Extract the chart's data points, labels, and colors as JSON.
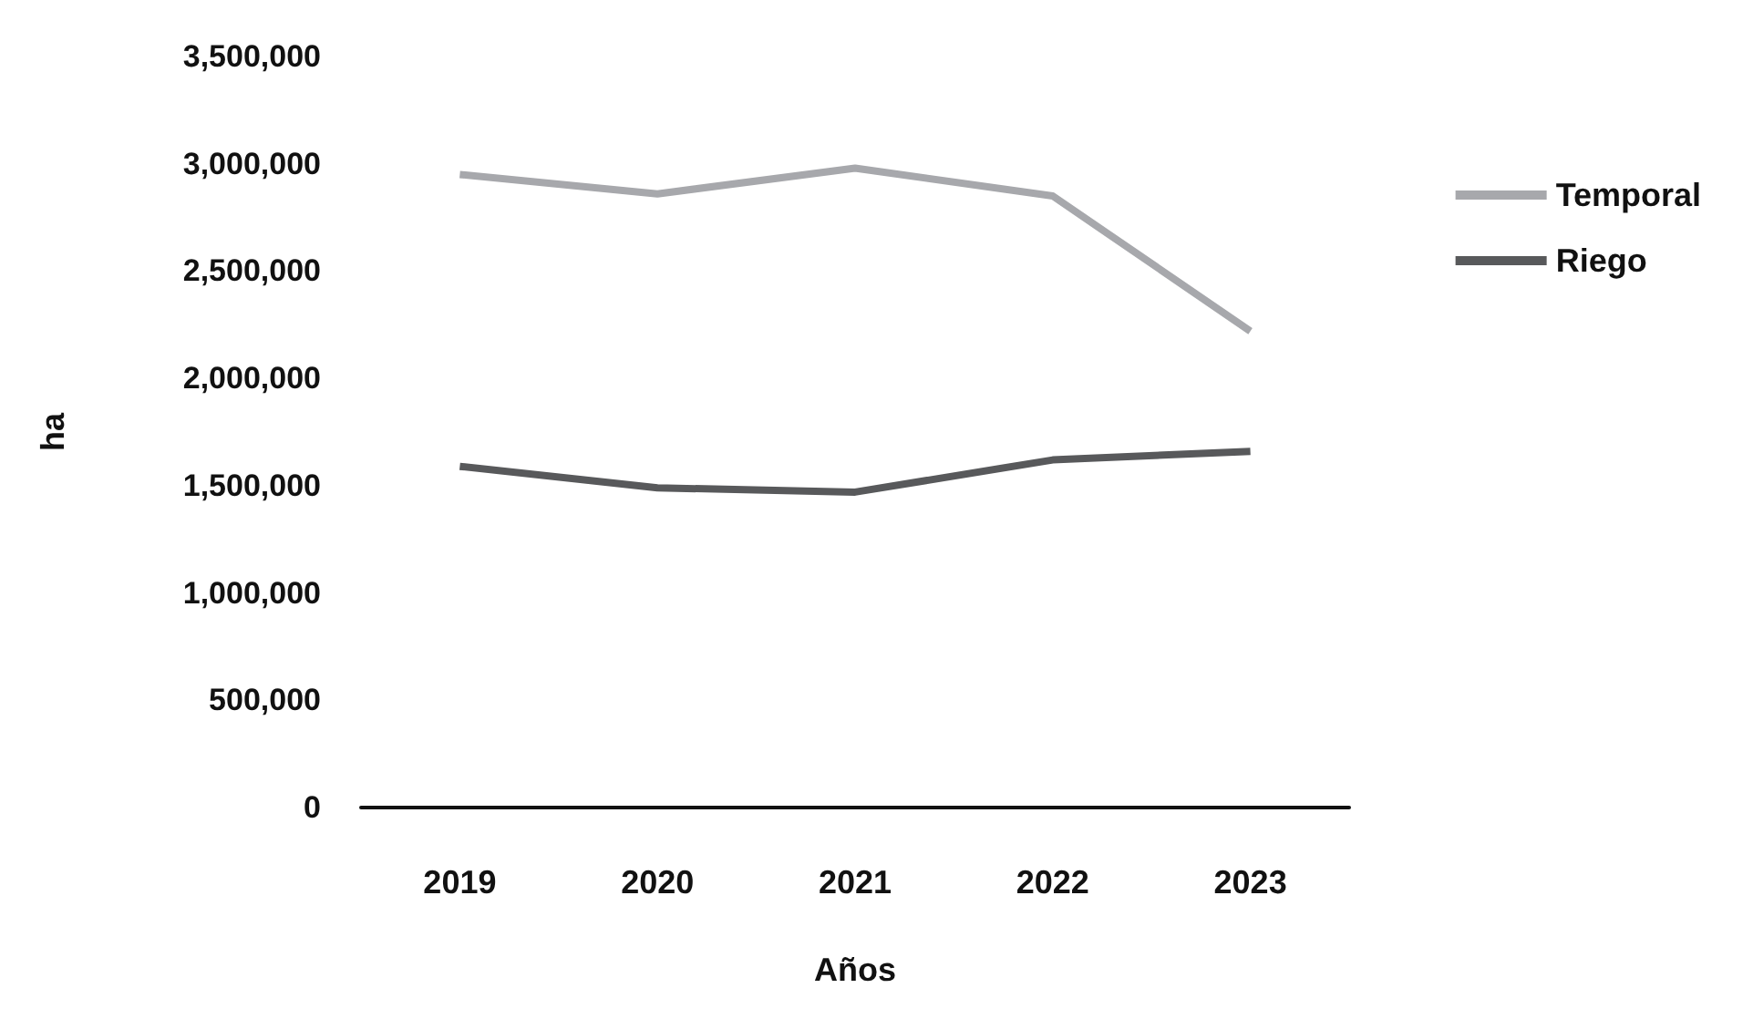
{
  "chart_data": {
    "type": "line",
    "xlabel": "Años",
    "ylabel": "ha",
    "categories": [
      "2019",
      "2020",
      "2021",
      "2022",
      "2023"
    ],
    "series": [
      {
        "name": "Temporal",
        "color": "#a7a8ac",
        "values": [
          2950000,
          2860000,
          2980000,
          2850000,
          2220000
        ]
      },
      {
        "name": "Riego",
        "color": "#58595b",
        "values": [
          1590000,
          1490000,
          1470000,
          1620000,
          1660000
        ]
      }
    ],
    "ylim": [
      0,
      3500000
    ],
    "yticks": [
      0,
      {
        "value": 500000,
        "label": "500,000"
      },
      {
        "value": 1000000,
        "label": "1,000,000"
      },
      {
        "value": 1500000,
        "label": "1,500,000"
      },
      {
        "value": 2000000,
        "label": "2,000,000"
      },
      {
        "value": 2500000,
        "label": "2,500,000"
      },
      {
        "value": 3000000,
        "label": "3,000,000"
      },
      {
        "value": 3500000,
        "label": "3,500,000"
      }
    ],
    "grid": false,
    "legend": "top right",
    "marker": "none",
    "line_style": "solid"
  }
}
